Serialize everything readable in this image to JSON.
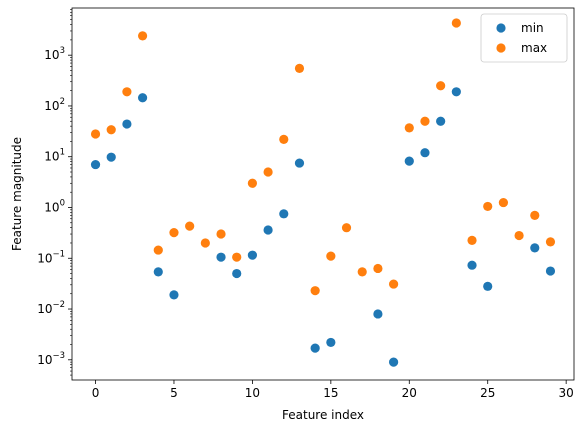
{
  "chart_data": {
    "type": "scatter",
    "title": "",
    "xlabel": "Feature index",
    "ylabel": "Feature magnitude",
    "xlim": [
      -1.5,
      30.5
    ],
    "ylim": [
      0.0004,
      8500
    ],
    "yscale": "log",
    "xticks": [
      0,
      5,
      10,
      15,
      20,
      25,
      30
    ],
    "xtick_labels": [
      "0",
      "5",
      "10",
      "15",
      "20",
      "25",
      "30"
    ],
    "yticks": [
      0.001,
      0.01,
      0.1,
      1,
      10,
      100,
      1000
    ],
    "ytick_labels": [
      {
        "base": "10",
        "exp": "−3"
      },
      {
        "base": "10",
        "exp": "−2"
      },
      {
        "base": "10",
        "exp": "−1"
      },
      {
        "base": "10",
        "exp": "0"
      },
      {
        "base": "10",
        "exp": "1"
      },
      {
        "base": "10",
        "exp": "2"
      },
      {
        "base": "10",
        "exp": "3"
      }
    ],
    "grid": false,
    "legend_position": "top-right",
    "series": [
      {
        "name": "min",
        "color": "#1f77b4",
        "points": [
          [
            0,
            7.0
          ],
          [
            1,
            9.8
          ],
          [
            2,
            44
          ],
          [
            3,
            145
          ],
          [
            4,
            0.054
          ],
          [
            5,
            0.019
          ],
          [
            8,
            0.105
          ],
          [
            9,
            0.05
          ],
          [
            10,
            0.115
          ],
          [
            11,
            0.36
          ],
          [
            12,
            0.75
          ],
          [
            13,
            7.5
          ],
          [
            14,
            0.0017
          ],
          [
            15,
            0.0022
          ],
          [
            18,
            0.008
          ],
          [
            19,
            0.0009
          ],
          [
            20,
            8.2
          ],
          [
            21,
            12
          ],
          [
            22,
            50
          ],
          [
            23,
            190
          ],
          [
            24,
            0.073
          ],
          [
            25,
            0.028
          ],
          [
            28,
            0.16
          ],
          [
            29,
            0.056
          ]
        ]
      },
      {
        "name": "max",
        "color": "#ff7f0e",
        "points": [
          [
            0,
            28
          ],
          [
            1,
            34
          ],
          [
            2,
            190
          ],
          [
            3,
            2400
          ],
          [
            4,
            0.145
          ],
          [
            5,
            0.32
          ],
          [
            6,
            0.43
          ],
          [
            7,
            0.2
          ],
          [
            8,
            0.3
          ],
          [
            9,
            0.105
          ],
          [
            10,
            3.0
          ],
          [
            11,
            5.0
          ],
          [
            12,
            22
          ],
          [
            13,
            550
          ],
          [
            14,
            0.023
          ],
          [
            15,
            0.11
          ],
          [
            16,
            0.4
          ],
          [
            17,
            0.054
          ],
          [
            18,
            0.063
          ],
          [
            19,
            0.031
          ],
          [
            20,
            37
          ],
          [
            21,
            50
          ],
          [
            22,
            250
          ],
          [
            23,
            4300
          ],
          [
            24,
            0.225
          ],
          [
            25,
            1.05
          ],
          [
            26,
            1.25
          ],
          [
            27,
            0.28
          ],
          [
            28,
            0.7
          ],
          [
            29,
            0.21
          ]
        ]
      }
    ]
  }
}
